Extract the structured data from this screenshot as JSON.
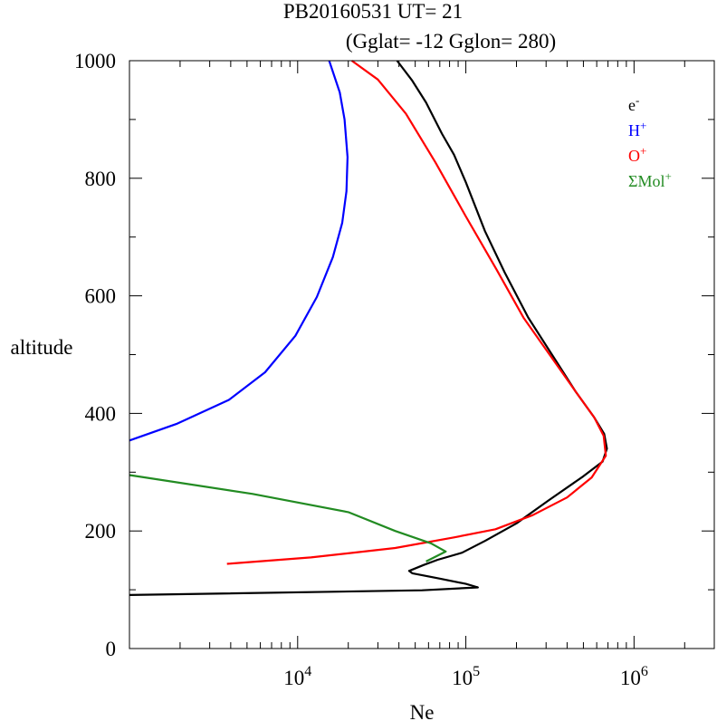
{
  "chart_data": {
    "type": "line",
    "title": "PB20160531   UT=  21",
    "subtitle": "(Gglat= -12   Gglon=  280)",
    "xlabel": "Ne",
    "ylabel": "altitude",
    "x_scale": "log",
    "xlim": [
      1000,
      3000000
    ],
    "ylim": [
      0,
      1000
    ],
    "x_ticks": [
      {
        "value": 10000,
        "base": "10",
        "exp": "4"
      },
      {
        "value": 100000,
        "base": "10",
        "exp": "5"
      },
      {
        "value": 1000000,
        "base": "10",
        "exp": "6"
      }
    ],
    "y_ticks": [
      {
        "value": 0,
        "label": "0"
      },
      {
        "value": 200,
        "label": "200"
      },
      {
        "value": 400,
        "label": "400"
      },
      {
        "value": 600,
        "label": "600"
      },
      {
        "value": 800,
        "label": "800"
      },
      {
        "value": 1000,
        "label": "1000"
      }
    ],
    "grid": false,
    "legend_position": "top-right",
    "series": [
      {
        "legend_base": "e",
        "legend_sup": "-",
        "color": "#000000",
        "points": [
          [
            1000,
            91
          ],
          [
            55000,
            99
          ],
          [
            118000,
            104
          ],
          [
            100000,
            110
          ],
          [
            70000,
            119
          ],
          [
            48000,
            128
          ],
          [
            46000,
            132
          ],
          [
            56000,
            142
          ],
          [
            68000,
            151
          ],
          [
            95000,
            163
          ],
          [
            130000,
            183
          ],
          [
            200000,
            213
          ],
          [
            310000,
            252
          ],
          [
            500000,
            293
          ],
          [
            650000,
            318
          ],
          [
            690000,
            340
          ],
          [
            665000,
            365
          ],
          [
            580000,
            393
          ],
          [
            450000,
            437
          ],
          [
            330000,
            497
          ],
          [
            235000,
            563
          ],
          [
            170000,
            640
          ],
          [
            130000,
            710
          ],
          [
            100000,
            793
          ],
          [
            85000,
            840
          ],
          [
            72000,
            876
          ],
          [
            58000,
            929
          ],
          [
            48000,
            966
          ],
          [
            39000,
            1000
          ]
        ]
      },
      {
        "legend_base": "H",
        "legend_sup": "+",
        "color": "#0000ff",
        "points": [
          [
            1000,
            354
          ],
          [
            1900,
            382
          ],
          [
            3900,
            423
          ],
          [
            6400,
            470
          ],
          [
            9700,
            532
          ],
          [
            13000,
            598
          ],
          [
            16200,
            666
          ],
          [
            18400,
            724
          ],
          [
            19500,
            778
          ],
          [
            19800,
            836
          ],
          [
            19000,
            900
          ],
          [
            17800,
            946
          ],
          [
            15400,
            1000
          ]
        ]
      },
      {
        "legend_base": "O",
        "legend_sup": "+",
        "color": "#ff0000",
        "points": [
          [
            3800,
            144
          ],
          [
            12000,
            155
          ],
          [
            38000,
            171
          ],
          [
            85000,
            189
          ],
          [
            150000,
            203
          ],
          [
            250000,
            227
          ],
          [
            400000,
            257
          ],
          [
            560000,
            291
          ],
          [
            680000,
            328
          ],
          [
            660000,
            362
          ],
          [
            580000,
            393
          ],
          [
            450000,
            437
          ],
          [
            320000,
            497
          ],
          [
            220000,
            563
          ],
          [
            152000,
            645
          ],
          [
            100000,
            735
          ],
          [
            66000,
            827
          ],
          [
            44000,
            910
          ],
          [
            30000,
            968
          ],
          [
            21000,
            1000
          ]
        ]
      },
      {
        "legend_base": "ΣMol",
        "legend_sup": "+",
        "color": "#228b22",
        "points": [
          [
            1000,
            295
          ],
          [
            5400,
            263
          ],
          [
            20000,
            232
          ],
          [
            38000,
            200
          ],
          [
            62000,
            179
          ],
          [
            76000,
            165
          ],
          [
            58000,
            148
          ]
        ]
      }
    ]
  }
}
